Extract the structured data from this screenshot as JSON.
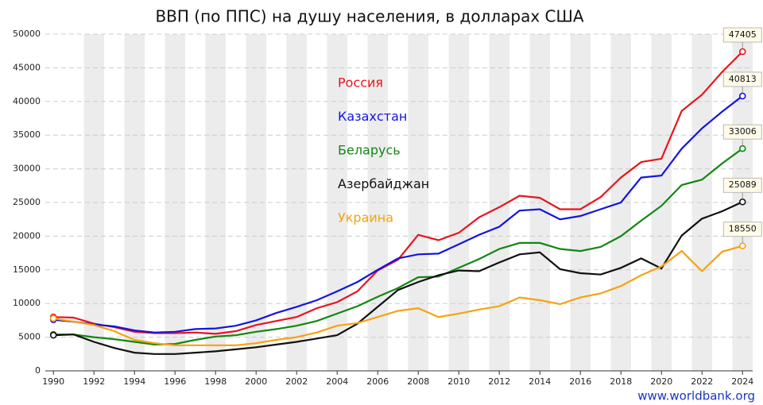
{
  "chart_data": {
    "type": "line",
    "title": "ВВП (по ППС) на душу населения, в долларах США",
    "source": "www.worldbank.org",
    "x": [
      1990,
      1991,
      1992,
      1993,
      1994,
      1995,
      1996,
      1997,
      1998,
      1999,
      2000,
      2001,
      2002,
      2003,
      2004,
      2005,
      2006,
      2007,
      2008,
      2009,
      2010,
      2011,
      2012,
      2013,
      2014,
      2015,
      2016,
      2017,
      2018,
      2019,
      2020,
      2021,
      2022,
      2023,
      2024
    ],
    "series": [
      {
        "name": "Россия",
        "color": "#e8141c",
        "values": [
          8000,
          7900,
          7000,
          6500,
          5800,
          5600,
          5600,
          5700,
          5500,
          5900,
          6800,
          7400,
          8000,
          9300,
          10200,
          11800,
          14900,
          16500,
          20200,
          19400,
          20500,
          22800,
          24300,
          26000,
          25700,
          24000,
          24000,
          25800,
          28700,
          31000,
          31500,
          38600,
          41000,
          44400,
          47405
        ]
      },
      {
        "name": "Казахстан",
        "color": "#1414e0",
        "values": [
          7600,
          7300,
          6900,
          6600,
          6000,
          5700,
          5800,
          6200,
          6300,
          6700,
          7500,
          8600,
          9500,
          10500,
          11800,
          13200,
          15000,
          16700,
          17300,
          17400,
          18800,
          20200,
          21400,
          23800,
          24000,
          22500,
          23000,
          24000,
          25000,
          28700,
          29000,
          33000,
          36000,
          38500,
          40813
        ]
      },
      {
        "name": "Беларусь",
        "color": "#118811",
        "values": [
          5400,
          5400,
          5000,
          4700,
          4300,
          3900,
          4000,
          4600,
          5100,
          5300,
          5800,
          6200,
          6700,
          7400,
          8500,
          9600,
          11000,
          12300,
          13900,
          14000,
          15300,
          16600,
          18100,
          19000,
          19000,
          18100,
          17800,
          18400,
          20000,
          22300,
          24500,
          27600,
          28400,
          30800,
          33006
        ]
      },
      {
        "name": "Азербайджан",
        "color": "#111111",
        "values": [
          5300,
          5400,
          4300,
          3400,
          2700,
          2500,
          2500,
          2700,
          2900,
          3200,
          3500,
          3900,
          4300,
          4800,
          5300,
          7000,
          9500,
          12000,
          13200,
          14200,
          14900,
          14800,
          16100,
          17300,
          17600,
          15100,
          14500,
          14300,
          15300,
          16700,
          15200,
          20100,
          22600,
          23700,
          25089
        ]
      },
      {
        "name": "Украина",
        "color": "#f5a30f",
        "values": [
          7800,
          7300,
          6800,
          5900,
          4600,
          4100,
          3800,
          3800,
          3800,
          3800,
          4100,
          4600,
          5000,
          5700,
          6700,
          7100,
          8000,
          8900,
          9300,
          8000,
          8500,
          9100,
          9600,
          10900,
          10500,
          9900,
          10900,
          11500,
          12600,
          14200,
          15500,
          17800,
          14800,
          17700,
          18550
        ]
      }
    ],
    "xlim": [
      1989.6,
      2024.5
    ],
    "xticks": [
      1990,
      1992,
      1994,
      1996,
      1998,
      2000,
      2002,
      2004,
      2006,
      2008,
      2010,
      2012,
      2014,
      2016,
      2018,
      2020,
      2022,
      2024
    ],
    "ylim": [
      0,
      50000
    ],
    "yticks": [
      0,
      5000,
      10000,
      15000,
      20000,
      25000,
      30000,
      35000,
      40000,
      45000,
      50000
    ],
    "grid": true
  }
}
